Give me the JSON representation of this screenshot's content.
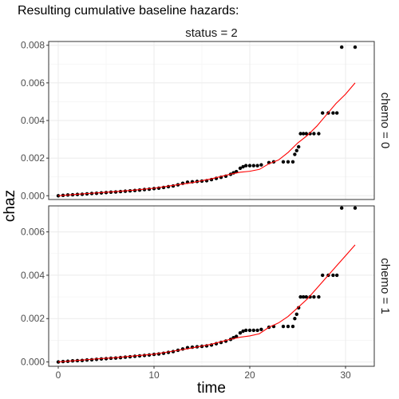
{
  "title": "Resulting cumulative baseline hazards:",
  "chart_data": {
    "type": "scatter",
    "column_facet": "status = 2",
    "xlabel": "time",
    "ylabel": "chaz",
    "xlim": [
      -1,
      33
    ],
    "x_ticks": [
      0,
      10,
      20,
      30
    ],
    "grid": true,
    "fit_line_color": "#ff0000",
    "point_color": "#000000",
    "panels": [
      {
        "row_facet": "chemo = 0",
        "ylim": [
          -0.0002,
          0.0082
        ],
        "y_ticks": [
          0.0,
          0.002,
          0.004,
          0.006,
          0.008
        ],
        "y_tick_labels": [
          "0.000",
          "0.002",
          "0.004",
          "0.006",
          "0.008"
        ],
        "points": [
          [
            0.0,
            0.0
          ],
          [
            0.5,
            2e-05
          ],
          [
            1.0,
            4e-05
          ],
          [
            1.5,
            5e-05
          ],
          [
            2.0,
            7e-05
          ],
          [
            2.5,
            8e-05
          ],
          [
            3.0,
            0.0001
          ],
          [
            3.5,
            0.00012
          ],
          [
            4.0,
            0.00013
          ],
          [
            4.5,
            0.00015
          ],
          [
            5.0,
            0.00017
          ],
          [
            5.5,
            0.00019
          ],
          [
            6.0,
            0.0002
          ],
          [
            6.5,
            0.00022
          ],
          [
            7.0,
            0.00024
          ],
          [
            7.5,
            0.00026
          ],
          [
            8.0,
            0.00028
          ],
          [
            8.5,
            0.0003
          ],
          [
            9.0,
            0.00033
          ],
          [
            9.5,
            0.00035
          ],
          [
            10.0,
            0.00038
          ],
          [
            10.5,
            0.0004
          ],
          [
            11.0,
            0.00044
          ],
          [
            11.5,
            0.00048
          ],
          [
            12.0,
            0.00052
          ],
          [
            12.5,
            0.00058
          ],
          [
            13.0,
            0.00066
          ],
          [
            13.5,
            0.00072
          ],
          [
            14.0,
            0.00074
          ],
          [
            14.5,
            0.00076
          ],
          [
            15.0,
            0.00078
          ],
          [
            15.5,
            0.0008
          ],
          [
            16.0,
            0.00086
          ],
          [
            16.5,
            0.00092
          ],
          [
            17.0,
            0.00098
          ],
          [
            17.5,
            0.00104
          ],
          [
            18.0,
            0.00114
          ],
          [
            18.3,
            0.00122
          ],
          [
            18.6,
            0.00128
          ],
          [
            19.0,
            0.00146
          ],
          [
            19.3,
            0.00154
          ],
          [
            19.6,
            0.0016
          ],
          [
            20.0,
            0.0016
          ],
          [
            20.4,
            0.0016
          ],
          [
            20.8,
            0.0016
          ],
          [
            21.2,
            0.00164
          ],
          [
            22.0,
            0.00176
          ],
          [
            22.5,
            0.0018
          ],
          [
            23.5,
            0.0018
          ],
          [
            24.0,
            0.0018
          ],
          [
            24.5,
            0.0018
          ],
          [
            24.7,
            0.0022
          ],
          [
            24.9,
            0.0024
          ],
          [
            25.1,
            0.0026
          ],
          [
            25.3,
            0.0033
          ],
          [
            25.6,
            0.0033
          ],
          [
            25.9,
            0.0033
          ],
          [
            26.3,
            0.0033
          ],
          [
            26.7,
            0.0033
          ],
          [
            27.2,
            0.0033
          ],
          [
            27.6,
            0.0044
          ],
          [
            28.2,
            0.0044
          ],
          [
            28.7,
            0.0044
          ],
          [
            29.1,
            0.0044
          ],
          [
            29.6,
            0.0079
          ],
          [
            31.0,
            0.0079
          ]
        ],
        "line": [
          [
            0,
            0.0
          ],
          [
            2,
            8e-05
          ],
          [
            4,
            0.00015
          ],
          [
            6,
            0.00022
          ],
          [
            8,
            0.0003
          ],
          [
            10,
            0.0004
          ],
          [
            12,
            0.00055
          ],
          [
            14,
            0.0007
          ],
          [
            16,
            0.0009
          ],
          [
            18,
            0.00115
          ],
          [
            19,
            0.00125
          ],
          [
            20,
            0.0013
          ],
          [
            21,
            0.0014
          ],
          [
            22,
            0.0017
          ],
          [
            23,
            0.0019
          ],
          [
            24,
            0.0023
          ],
          [
            25,
            0.0028
          ],
          [
            26,
            0.0032
          ],
          [
            27,
            0.0037
          ],
          [
            28,
            0.0043
          ],
          [
            29,
            0.0049
          ],
          [
            30,
            0.0054
          ],
          [
            31,
            0.006
          ]
        ]
      },
      {
        "row_facet": "chemo = 1",
        "ylim": [
          -0.0002,
          0.0072
        ],
        "y_ticks": [
          0.0,
          0.002,
          0.004,
          0.006
        ],
        "y_tick_labels": [
          "0.000",
          "0.002",
          "0.004",
          "0.006"
        ],
        "points": [
          [
            0.0,
            0.0
          ],
          [
            0.5,
            2e-05
          ],
          [
            1.0,
            3e-05
          ],
          [
            1.5,
            5e-05
          ],
          [
            2.0,
            6e-05
          ],
          [
            2.5,
            7e-05
          ],
          [
            3.0,
            9e-05
          ],
          [
            3.5,
            0.0001
          ],
          [
            4.0,
            0.00012
          ],
          [
            4.5,
            0.00014
          ],
          [
            5.0,
            0.00015
          ],
          [
            5.5,
            0.00017
          ],
          [
            6.0,
            0.00018
          ],
          [
            6.5,
            0.0002
          ],
          [
            7.0,
            0.00022
          ],
          [
            7.5,
            0.00024
          ],
          [
            8.0,
            0.00026
          ],
          [
            8.5,
            0.00028
          ],
          [
            9.0,
            0.0003
          ],
          [
            9.5,
            0.00032
          ],
          [
            10.0,
            0.00035
          ],
          [
            10.5,
            0.00037
          ],
          [
            11.0,
            0.0004
          ],
          [
            11.5,
            0.00044
          ],
          [
            12.0,
            0.00048
          ],
          [
            12.5,
            0.00054
          ],
          [
            13.0,
            0.0006
          ],
          [
            13.5,
            0.00066
          ],
          [
            14.0,
            0.00068
          ],
          [
            14.5,
            0.0007
          ],
          [
            15.0,
            0.00072
          ],
          [
            15.5,
            0.00074
          ],
          [
            16.0,
            0.00078
          ],
          [
            16.5,
            0.00084
          ],
          [
            17.0,
            0.0009
          ],
          [
            17.5,
            0.00096
          ],
          [
            18.0,
            0.00104
          ],
          [
            18.3,
            0.00112
          ],
          [
            18.6,
            0.00118
          ],
          [
            19.0,
            0.00134
          ],
          [
            19.3,
            0.00142
          ],
          [
            19.6,
            0.00146
          ],
          [
            20.0,
            0.00146
          ],
          [
            20.4,
            0.00146
          ],
          [
            20.8,
            0.00146
          ],
          [
            21.2,
            0.0015
          ],
          [
            22.0,
            0.0016
          ],
          [
            22.5,
            0.00164
          ],
          [
            23.5,
            0.00164
          ],
          [
            24.0,
            0.00164
          ],
          [
            24.5,
            0.00164
          ],
          [
            24.7,
            0.002
          ],
          [
            24.9,
            0.0022
          ],
          [
            25.1,
            0.0025
          ],
          [
            25.3,
            0.003
          ],
          [
            25.6,
            0.003
          ],
          [
            25.9,
            0.003
          ],
          [
            26.3,
            0.003
          ],
          [
            26.7,
            0.003
          ],
          [
            27.2,
            0.003
          ],
          [
            27.6,
            0.004
          ],
          [
            28.2,
            0.004
          ],
          [
            28.7,
            0.004
          ],
          [
            29.1,
            0.004
          ],
          [
            29.6,
            0.0071
          ],
          [
            31.0,
            0.0071
          ]
        ],
        "line": [
          [
            0,
            0.0
          ],
          [
            2,
            7e-05
          ],
          [
            4,
            0.00014
          ],
          [
            6,
            0.0002
          ],
          [
            8,
            0.00028
          ],
          [
            10,
            0.00036
          ],
          [
            12,
            0.0005
          ],
          [
            14,
            0.00065
          ],
          [
            16,
            0.00082
          ],
          [
            18,
            0.00105
          ],
          [
            19,
            0.00114
          ],
          [
            20,
            0.0012
          ],
          [
            21,
            0.0013
          ],
          [
            22,
            0.0016
          ],
          [
            23,
            0.0018
          ],
          [
            24,
            0.0021
          ],
          [
            25,
            0.0025
          ],
          [
            26,
            0.0029
          ],
          [
            27,
            0.0034
          ],
          [
            28,
            0.0039
          ],
          [
            29,
            0.0044
          ],
          [
            30,
            0.0049
          ],
          [
            31,
            0.0054
          ]
        ]
      }
    ]
  }
}
